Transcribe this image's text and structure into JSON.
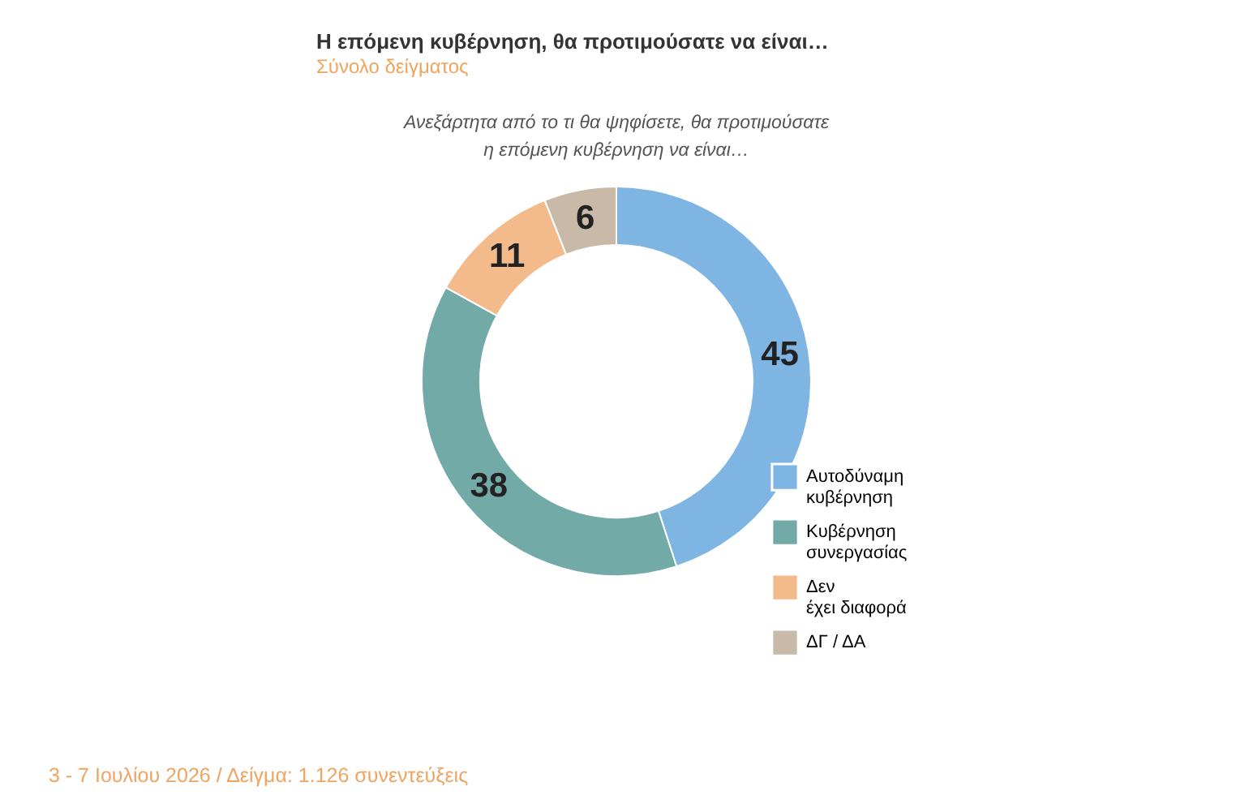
{
  "chart_data": {
    "type": "donut",
    "title": "Η επόμενη κυβέρνηση, θα προτιμούσατε να είναι…",
    "subtitle": "Σύνολο δείγματος",
    "annotations": [
      "Ανεξάρτητα από το τι θα ψηφίσετε, θα προτιμούσατε\nη επόμενη κυβέρνηση να είναι…",
      "3 - 7 Ιουλίου 2026  /  Δείγμα:  1.126 συνεντεύξεις"
    ],
    "categories": [
      "Αυτοδύναμη κυβέρνηση",
      "Κυβέρνηση συνεργασίας",
      "Δεν έχει διαφορά",
      "ΔΓ / ΔΑ"
    ],
    "values": [
      45,
      38,
      11,
      6
    ],
    "colors": [
      "#7fb5e3",
      "#72aaa8",
      "#f3bb8c",
      "#c9b9a9"
    ],
    "data_labels": true,
    "legend": "bottom right"
  }
}
